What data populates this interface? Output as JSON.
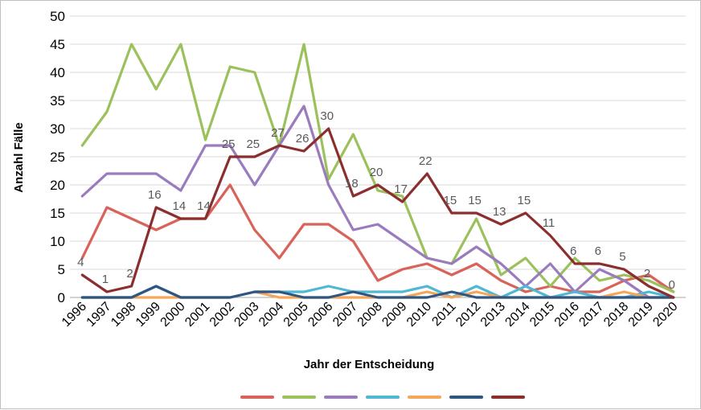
{
  "chart_data": {
    "type": "line",
    "title": "",
    "xlabel": "Jahr der Entscheidung",
    "ylabel": "Anzahl Fälle",
    "ylim": [
      0,
      50
    ],
    "yticks": [
      0,
      5,
      10,
      15,
      20,
      25,
      30,
      35,
      40,
      45,
      50
    ],
    "grid": true,
    "legend_position": "bottom",
    "x": [
      "1996",
      "1997",
      "1998",
      "1999",
      "2000",
      "2001",
      "2002",
      "2003",
      "2004",
      "2005",
      "2006",
      "2007",
      "2008",
      "2009",
      "2010",
      "2011",
      "2012",
      "2013",
      "2014",
      "2015",
      "2016",
      "2017",
      "2018",
      "2019",
      "2020"
    ],
    "series": [
      {
        "color": "#d9625b",
        "values": [
          7,
          16,
          14,
          12,
          14,
          14,
          20,
          12,
          7,
          13,
          13,
          10,
          3,
          5,
          6,
          4,
          6,
          3,
          1,
          2,
          1,
          1,
          3,
          4,
          1
        ]
      },
      {
        "color": "#9bc15c",
        "values": [
          27,
          33,
          45,
          37,
          45,
          28,
          41,
          40,
          27,
          45,
          21,
          29,
          19,
          18,
          7,
          6,
          14,
          4,
          7,
          2,
          7,
          3,
          4,
          3,
          1
        ]
      },
      {
        "color": "#9a7bbd",
        "values": [
          18,
          22,
          22,
          22,
          19,
          27,
          27,
          20,
          27,
          34,
          20,
          12,
          13,
          10,
          7,
          6,
          9,
          6,
          2,
          6,
          1,
          5,
          3,
          0,
          0
        ]
      },
      {
        "color": "#4fb8d3",
        "values": [
          0,
          0,
          0,
          2,
          0,
          0,
          0,
          1,
          1,
          1,
          2,
          1,
          1,
          1,
          2,
          0,
          2,
          0,
          2,
          0,
          1,
          0,
          0,
          1,
          0
        ]
      },
      {
        "color": "#f6a65b",
        "values": [
          0,
          0,
          0,
          0,
          0,
          0,
          0,
          1,
          0,
          0,
          0,
          0,
          0,
          0,
          1,
          0,
          1,
          0,
          0,
          0,
          0,
          0,
          1,
          0,
          0
        ]
      },
      {
        "color": "#2f5582",
        "values": [
          0,
          0,
          0,
          2,
          0,
          0,
          0,
          1,
          1,
          0,
          0,
          1,
          0,
          0,
          0,
          1,
          0,
          0,
          0,
          0,
          0,
          0,
          0,
          0,
          0
        ]
      },
      {
        "color": "#8b2e2e",
        "values": [
          4,
          1,
          2,
          16,
          14,
          14,
          25,
          25,
          27,
          26,
          30,
          18,
          20,
          17,
          22,
          15,
          15,
          13,
          15,
          11,
          6,
          6,
          5,
          2,
          0
        ]
      }
    ],
    "data_labels_series_index": 6,
    "data_labels": [
      "4",
      "1",
      "2",
      "16",
      "14",
      "14",
      "25",
      "25",
      "27",
      "26",
      "30",
      "18",
      "20",
      "17",
      "22",
      "15",
      "15",
      "13",
      "15",
      "11",
      "6",
      "6",
      "5",
      "2",
      "0"
    ]
  }
}
